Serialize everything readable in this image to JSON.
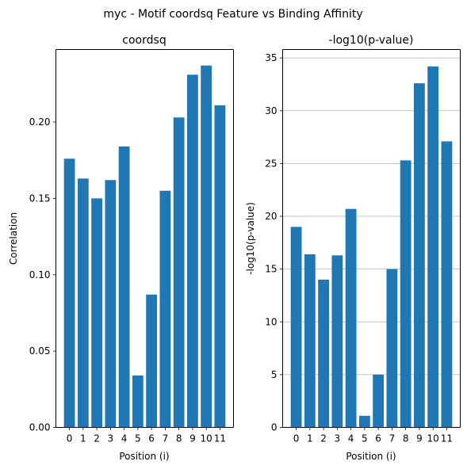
{
  "suptitle": "myc - Motif coordsq Feature vs Binding Affinity",
  "chart_data": [
    {
      "type": "bar",
      "title": "coordsq",
      "xlabel": "Position (i)",
      "ylabel": "Correlation",
      "categories": [
        "0",
        "1",
        "2",
        "3",
        "4",
        "5",
        "6",
        "7",
        "8",
        "9",
        "10",
        "11"
      ],
      "values": [
        0.176,
        0.163,
        0.15,
        0.162,
        0.184,
        0.034,
        0.087,
        0.155,
        0.203,
        0.231,
        0.237,
        0.211
      ],
      "ylim": [
        0,
        0.2475
      ],
      "yticks": [
        0.0,
        0.05,
        0.1,
        0.15,
        0.2
      ],
      "ytick_labels": [
        "0.00",
        "0.05",
        "0.10",
        "0.15",
        "0.20"
      ],
      "grid": false,
      "color": "#1f77b4"
    },
    {
      "type": "bar",
      "title": "-log10(p-value)",
      "xlabel": "Position (i)",
      "ylabel": "-log10(p-value)",
      "categories": [
        "0",
        "1",
        "2",
        "3",
        "4",
        "5",
        "6",
        "7",
        "8",
        "9",
        "10",
        "11"
      ],
      "values": [
        19.0,
        16.4,
        14.0,
        16.3,
        20.7,
        1.1,
        5.0,
        15.0,
        25.3,
        32.6,
        34.2,
        27.1
      ],
      "ylim": [
        0,
        35.8
      ],
      "yticks": [
        0,
        5,
        10,
        15,
        20,
        25,
        30,
        35
      ],
      "ytick_labels": [
        "0",
        "5",
        "10",
        "15",
        "20",
        "25",
        "30",
        "35"
      ],
      "grid": true,
      "grid_axis": "y",
      "color": "#1f77b4"
    }
  ]
}
